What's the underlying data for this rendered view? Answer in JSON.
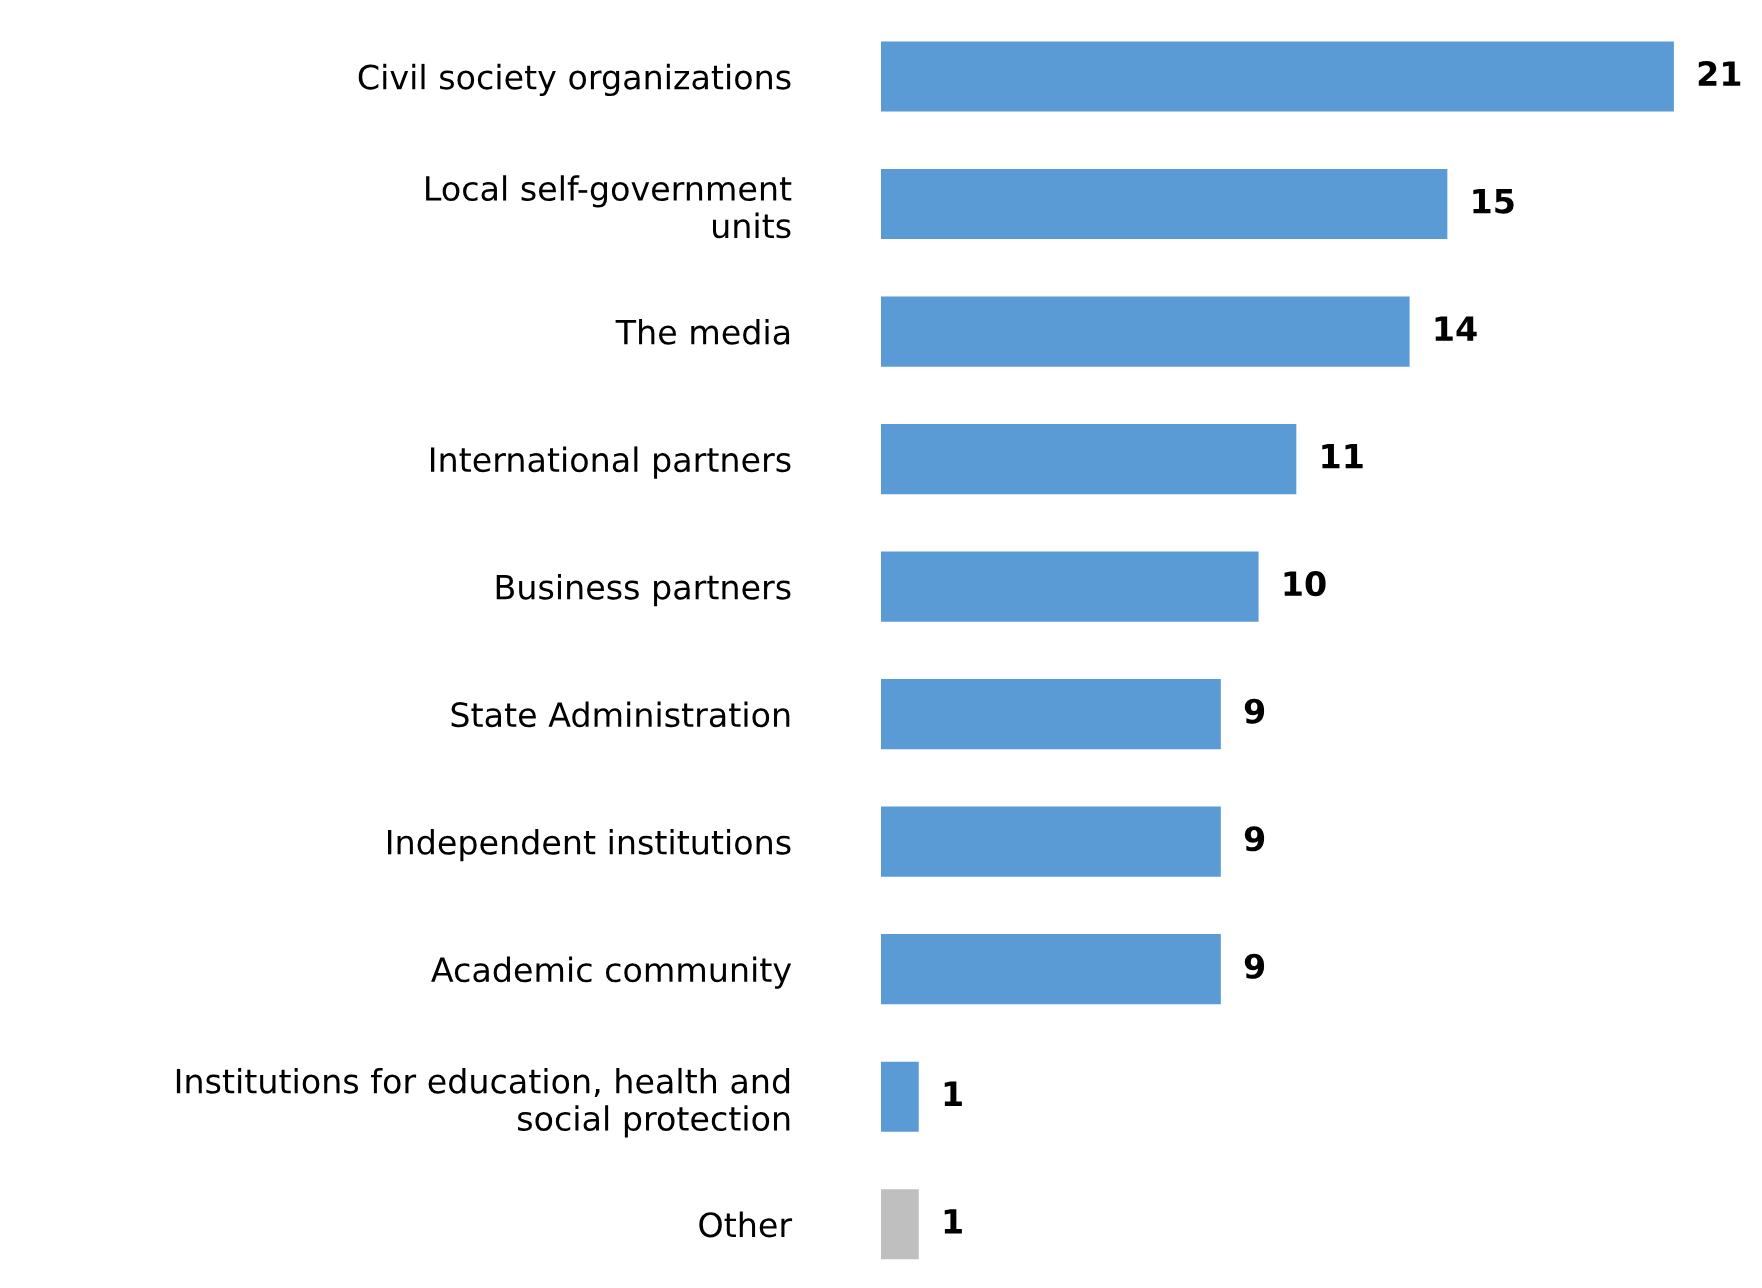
{
  "chart_data": {
    "type": "bar",
    "orientation": "horizontal",
    "categories": [
      "Civil society organizations",
      "Local self-government\nunits",
      "The media",
      "International partners",
      "Business partners",
      "State Administration",
      "Independent institutions",
      "Academic community",
      "Institutions for education, health and\nsocial protection",
      "Other"
    ],
    "values": [
      21,
      15,
      14,
      11,
      10,
      9,
      9,
      9,
      1,
      1
    ],
    "colors": [
      "#5b9bd5",
      "#5b9bd5",
      "#5b9bd5",
      "#5b9bd5",
      "#5b9bd5",
      "#5b9bd5",
      "#5b9bd5",
      "#5b9bd5",
      "#5b9bd5",
      "#bfbfbf"
    ],
    "data_labels": true,
    "tick_labels": "y",
    "grid": false,
    "legend": false
  }
}
